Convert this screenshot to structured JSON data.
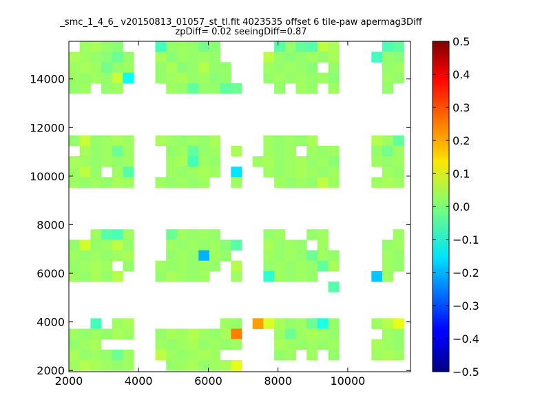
{
  "chart_data": {
    "type": "heatmap",
    "title": "_smc_1_4_6_ v20150813_01057_st_tl.fit 4023535 offset 6 tile-paw apermag3Diff",
    "subtitle": "zpDiff= 0.02 seeingDiff=0.87",
    "xlabel": "",
    "ylabel": "",
    "xlim": [
      2000,
      11800
    ],
    "ylim": [
      1950,
      15550
    ],
    "x_ticks": [
      "2000",
      "4000",
      "6000",
      "8000",
      "10000"
    ],
    "x_tick_values": [
      2000,
      4000,
      6000,
      8000,
      10000
    ],
    "y_ticks": [
      "2000",
      "4000",
      "6000",
      "8000",
      "10000",
      "12000",
      "14000"
    ],
    "y_tick_values": [
      2000,
      4000,
      6000,
      8000,
      10000,
      12000,
      14000
    ],
    "colorbar": {
      "colormap": "jet",
      "range": [
        -0.5,
        0.5
      ],
      "ticks": [
        "0.5",
        "0.4",
        "0.3",
        "0.2",
        "0.1",
        "0.0",
        "−0.1",
        "−0.2",
        "−0.3",
        "−0.4",
        "−0.5"
      ],
      "tick_values": [
        0.5,
        0.4,
        0.3,
        0.2,
        0.1,
        0.0,
        -0.1,
        -0.2,
        -0.3,
        -0.4,
        -0.5
      ]
    },
    "cell_size": [
      310,
      430
    ],
    "x_centers": [
      2155,
      2465,
      2775,
      3085,
      3395,
      3705,
      4015,
      4325,
      4635,
      4945,
      5255,
      5565,
      5875,
      6185,
      6495,
      6805,
      7115,
      7425,
      7735,
      8045,
      8355,
      8665,
      8975,
      9285,
      9595,
      9905,
      10215,
      10525,
      10835,
      11145,
      11455
    ],
    "rows": [
      {
        "y": 15335,
        "values": [
          null,
          0.03,
          0.04,
          0.02,
          0.01,
          null,
          null,
          null,
          -0.06,
          0.02,
          0.03,
          0.02,
          -0.01,
          0.01,
          null,
          null,
          null,
          null,
          null,
          -0.04,
          0.02,
          -0.03,
          -0.04,
          0.06,
          0.04,
          null,
          null,
          null,
          null,
          -0.05,
          -0.03
        ]
      },
      {
        "y": 14905,
        "values": [
          0.04,
          0.03,
          0.02,
          0.01,
          -0.02,
          0.02,
          null,
          null,
          0.04,
          0.01,
          0.03,
          0.02,
          0.03,
          0.02,
          null,
          null,
          null,
          null,
          0.06,
          0.02,
          0.01,
          0.02,
          0.03,
          0.02,
          0.04,
          null,
          null,
          null,
          -0.06,
          0.02,
          0.01
        ]
      },
      {
        "y": 14475,
        "values": [
          0.03,
          0.04,
          0.03,
          -0.01,
          0.02,
          0.03,
          null,
          null,
          0.02,
          0.04,
          0.01,
          0.02,
          0.05,
          0.02,
          0.02,
          null,
          null,
          null,
          0.03,
          0.02,
          0.03,
          0.02,
          0.01,
          null,
          0.02,
          null,
          null,
          null,
          null,
          0.02,
          0.03
        ]
      },
      {
        "y": 14045,
        "values": [
          0.03,
          0.02,
          0.03,
          0.02,
          0.07,
          -0.12,
          null,
          null,
          0.02,
          0.03,
          0.04,
          0.02,
          0.03,
          0.01,
          0.02,
          null,
          null,
          null,
          0.02,
          0.03,
          0.02,
          0.03,
          0.02,
          0.03,
          0.01,
          null,
          null,
          null,
          null,
          0.03,
          0.02
        ]
      },
      {
        "y": 13615,
        "values": [
          0.02,
          0.03,
          null,
          0.02,
          0.03,
          null,
          null,
          null,
          null,
          0.03,
          0.02,
          -0.03,
          0.02,
          0.02,
          -0.03,
          -0.02,
          null,
          null,
          null,
          0.02,
          null,
          0.03,
          0.02,
          null,
          0.03,
          null,
          null,
          null,
          null,
          0.02,
          null
        ]
      },
      {
        "y": 11465,
        "values": [
          0.02,
          0.07,
          0.02,
          0.03,
          0.04,
          0.03,
          null,
          null,
          0.04,
          0.03,
          0.02,
          0.03,
          0.02,
          0.04,
          null,
          null,
          null,
          null,
          0.03,
          0.02,
          0.03,
          0.02,
          0.04,
          null,
          null,
          null,
          null,
          null,
          0.05,
          0.03,
          -0.03
        ]
      },
      {
        "y": 11035,
        "values": [
          null,
          0.04,
          0.02,
          0.03,
          -0.02,
          0.03,
          null,
          null,
          null,
          0.02,
          0.03,
          -0.03,
          0.02,
          0.03,
          null,
          0.04,
          null,
          null,
          0.03,
          0.02,
          0.03,
          null,
          0.03,
          0.02,
          0.03,
          null,
          null,
          null,
          0.02,
          -0.01,
          0.03
        ]
      },
      {
        "y": 10605,
        "values": [
          0.04,
          0.03,
          0.02,
          0.03,
          0.02,
          0.03,
          null,
          null,
          null,
          0.03,
          0.04,
          -0.06,
          0.03,
          0.02,
          null,
          null,
          null,
          0.03,
          0.04,
          0.02,
          0.03,
          0.04,
          0.02,
          0.03,
          0.01,
          null,
          null,
          null,
          0.03,
          0.02,
          0.03
        ]
      },
      {
        "y": 10175,
        "values": [
          0.03,
          0.06,
          0.02,
          null,
          0.03,
          -0.04,
          null,
          null,
          null,
          0.03,
          0.02,
          0.03,
          0.04,
          0.03,
          null,
          -0.15,
          null,
          null,
          0.03,
          0.02,
          0.03,
          0.04,
          0.03,
          0.02,
          0.03,
          null,
          null,
          null,
          null,
          0.03,
          0.02
        ]
      },
      {
        "y": 9745,
        "values": [
          0.03,
          0.02,
          0.03,
          0.02,
          0.04,
          0.03,
          null,
          null,
          0.03,
          0.02,
          0.03,
          0.02,
          0.03,
          null,
          null,
          0.03,
          null,
          null,
          null,
          0.03,
          0.02,
          0.03,
          0.02,
          0.06,
          0.03,
          null,
          null,
          null,
          0.03,
          0.04,
          0.03
        ]
      },
      {
        "y": 7595,
        "values": [
          null,
          null,
          0.03,
          -0.04,
          -0.05,
          0.03,
          null,
          null,
          null,
          -0.02,
          0.03,
          0.02,
          0.03,
          0.02,
          null,
          null,
          null,
          null,
          0.02,
          0.03,
          null,
          null,
          0.02,
          0.03,
          null,
          null,
          null,
          null,
          null,
          null,
          0.03
        ]
      },
      {
        "y": 7165,
        "values": [
          0.02,
          0.08,
          0.02,
          0.03,
          0.06,
          0.02,
          null,
          null,
          null,
          0.03,
          0.02,
          0.03,
          0.02,
          0.03,
          0.01,
          -0.04,
          null,
          null,
          0.04,
          0.02,
          0.03,
          0.02,
          null,
          0.03,
          null,
          null,
          null,
          null,
          null,
          0.02,
          0.03
        ]
      },
      {
        "y": 6735,
        "values": [
          0.03,
          0.02,
          0.03,
          0.02,
          0.03,
          0.04,
          null,
          null,
          null,
          0.02,
          0.03,
          0.02,
          -0.2,
          0.03,
          0.02,
          null,
          null,
          null,
          0.03,
          0.02,
          0.03,
          0.02,
          -0.02,
          0.03,
          0.02,
          null,
          null,
          null,
          null,
          0.03,
          0.02
        ]
      },
      {
        "y": 6305,
        "values": [
          0.02,
          0.03,
          0.04,
          0.03,
          null,
          0.02,
          null,
          null,
          0.03,
          0.02,
          0.03,
          0.02,
          0.03,
          0.02,
          null,
          0.05,
          null,
          null,
          0.02,
          0.03,
          0.02,
          0.03,
          0.02,
          -0.03,
          0.04,
          null,
          null,
          null,
          null,
          0.03,
          0.02
        ]
      },
      {
        "y": 5875,
        "values": [
          0.03,
          0.02,
          0.04,
          0.02,
          0.05,
          null,
          null,
          null,
          0.02,
          0.04,
          0.03,
          0.02,
          0.03,
          null,
          null,
          0.03,
          null,
          null,
          -0.08,
          0.03,
          0.02,
          0.03,
          0.02,
          null,
          null,
          null,
          null,
          null,
          -0.18,
          0.03,
          null
        ]
      },
      {
        "y": 5445,
        "values": [
          null,
          null,
          null,
          null,
          null,
          null,
          null,
          null,
          null,
          null,
          null,
          null,
          null,
          null,
          null,
          null,
          null,
          null,
          null,
          null,
          null,
          null,
          null,
          null,
          -0.04,
          null,
          null,
          null,
          null,
          null,
          null
        ]
      },
      {
        "y": 3935,
        "values": [
          null,
          null,
          -0.06,
          null,
          0.03,
          0.04,
          null,
          null,
          null,
          null,
          null,
          null,
          null,
          null,
          0.03,
          0.02,
          null,
          0.22,
          0.09,
          0.04,
          0.02,
          0.03,
          -0.02,
          -0.1,
          0.02,
          null,
          null,
          null,
          0.03,
          0.05,
          0.1
        ]
      },
      {
        "y": 3505,
        "values": [
          0.03,
          0.02,
          0.03,
          0.02,
          0.04,
          0.03,
          null,
          null,
          0.02,
          0.04,
          0.03,
          0.05,
          0.03,
          0.02,
          0.04,
          0.25,
          null,
          null,
          null,
          0.03,
          -0.02,
          0.03,
          0.04,
          0.03,
          0.02,
          null,
          null,
          null,
          null,
          0.03,
          0.02
        ]
      },
      {
        "y": 3075,
        "values": [
          0.02,
          0.03,
          0.04,
          null,
          null,
          null,
          null,
          null,
          0.03,
          0.02,
          0.03,
          0.04,
          0.02,
          0.03,
          0.02,
          0.03,
          null,
          null,
          null,
          0.04,
          0.03,
          0.02,
          0.03,
          0.02,
          0.03,
          null,
          null,
          null,
          0.04,
          0.03,
          0.02
        ]
      },
      {
        "y": 2645,
        "values": [
          0.04,
          0.02,
          0.03,
          0.02,
          -0.02,
          0.03,
          null,
          null,
          0.06,
          0.03,
          0.02,
          0.03,
          0.04,
          0.03,
          null,
          null,
          null,
          null,
          null,
          0.02,
          0.03,
          null,
          0.03,
          null,
          0.02,
          null,
          null,
          null,
          0.03,
          0.04,
          0.03
        ]
      },
      {
        "y": 2215,
        "values": [
          0.03,
          0.05,
          0.04,
          0.03,
          0.02,
          0.03,
          null,
          null,
          null,
          0.02,
          0.03,
          0.04,
          0.02,
          0.03,
          0.04,
          0.1,
          null,
          null,
          null,
          null,
          null,
          null,
          null,
          null,
          null,
          null,
          null,
          null,
          null,
          null,
          null
        ]
      }
    ]
  }
}
